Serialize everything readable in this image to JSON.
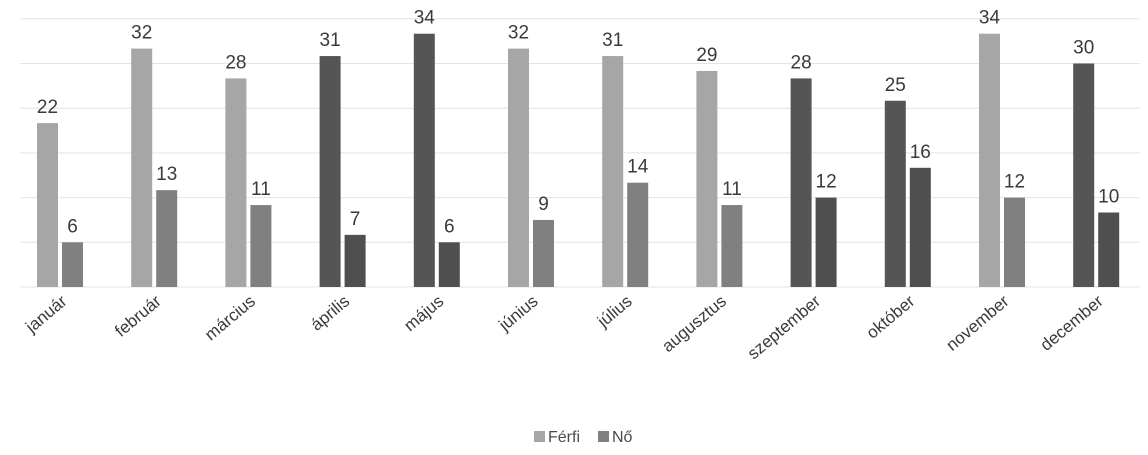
{
  "chart_data": {
    "type": "bar",
    "categories": [
      "január",
      "február",
      "március",
      "április",
      "május",
      "június",
      "július",
      "augusztus",
      "szeptember",
      "október",
      "november",
      "december"
    ],
    "series": [
      {
        "name": "Férfi",
        "values": [
          22,
          32,
          28,
          31,
          34,
          32,
          31,
          29,
          28,
          25,
          34,
          30
        ]
      },
      {
        "name": "Nő",
        "values": [
          6,
          13,
          11,
          7,
          6,
          9,
          14,
          11,
          12,
          16,
          12,
          10
        ]
      }
    ],
    "ylim": [
      0,
      36
    ],
    "data_labels": true,
    "legend_position": "bottom",
    "colors": {
      "ferfi": "#a6a6a6",
      "ferfi_dark": "#555555",
      "no": "#808080",
      "no_dark": "#4f4f4f",
      "gridline": "#e4e4e4",
      "text": "#3a3a3a"
    },
    "dark_categories": [
      "április",
      "május",
      "szeptember",
      "október",
      "december"
    ]
  }
}
